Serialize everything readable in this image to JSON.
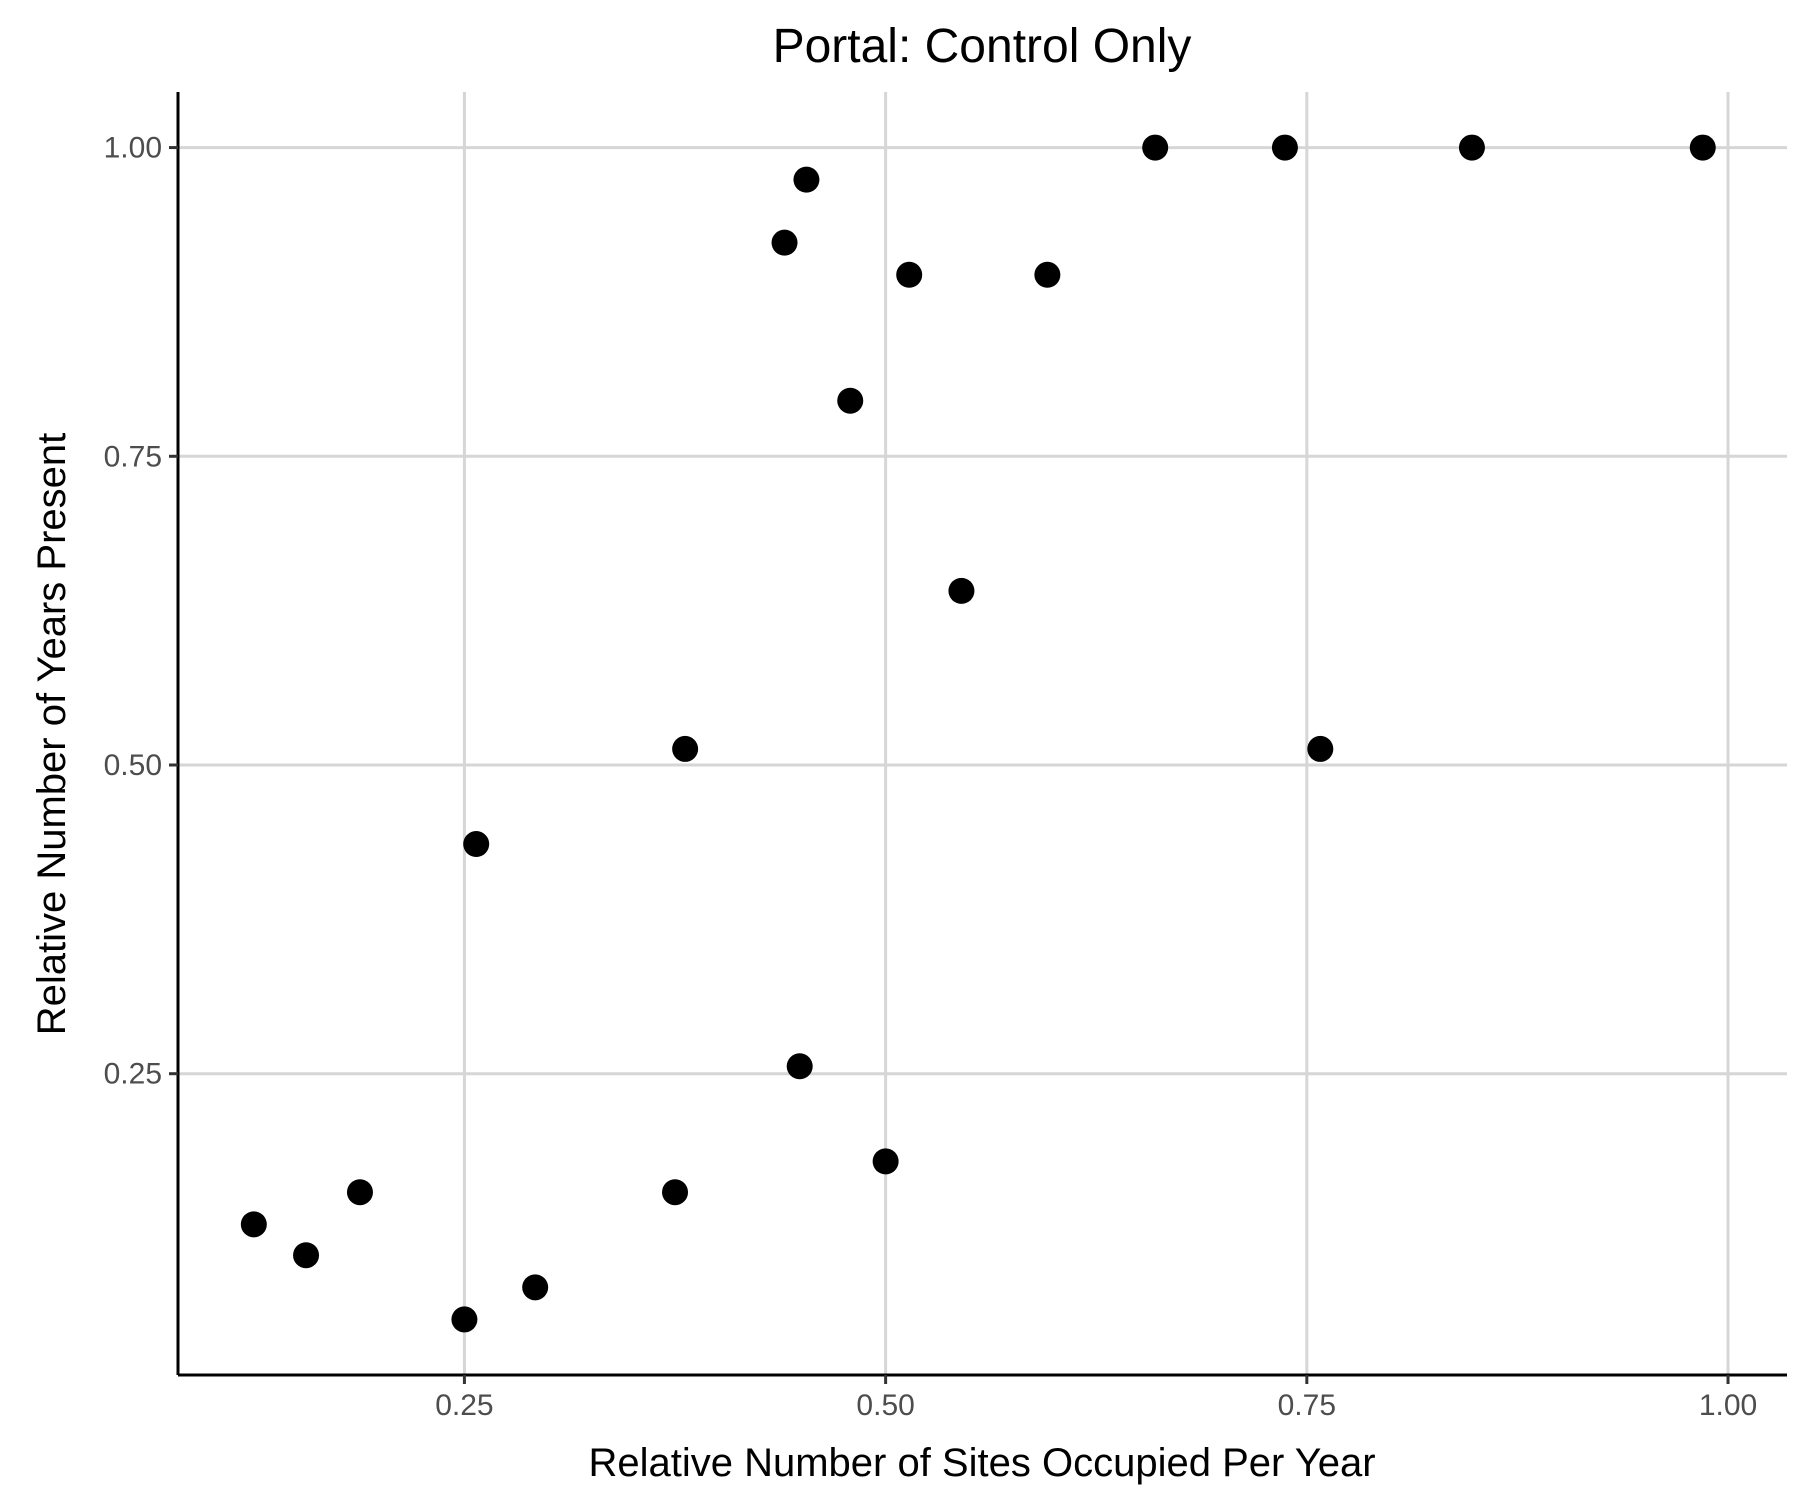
{
  "chart_data": {
    "type": "scatter",
    "title": "Portal: Control Only",
    "xlabel": "Relative Number of Sites Occupied Per Year",
    "ylabel": "Relative Number of Years Present",
    "xlim": [
      0.08,
      1.035
    ],
    "ylim": [
      0.006,
      1.045
    ],
    "x_ticks": [
      0.25,
      0.5,
      0.75,
      1.0
    ],
    "x_tick_labels": [
      "0.25",
      "0.50",
      "0.75",
      "1.00"
    ],
    "y_ticks": [
      0.25,
      0.5,
      0.75,
      1.0
    ],
    "y_tick_labels": [
      "0.25",
      "0.50",
      "0.75",
      "1.00"
    ],
    "grid": true,
    "point_color": "#000000",
    "points": [
      {
        "x": 0.125,
        "y": 0.128
      },
      {
        "x": 0.156,
        "y": 0.103
      },
      {
        "x": 0.188,
        "y": 0.154
      },
      {
        "x": 0.25,
        "y": 0.051
      },
      {
        "x": 0.257,
        "y": 0.436
      },
      {
        "x": 0.292,
        "y": 0.077
      },
      {
        "x": 0.375,
        "y": 0.154
      },
      {
        "x": 0.381,
        "y": 0.513
      },
      {
        "x": 0.44,
        "y": 0.923
      },
      {
        "x": 0.449,
        "y": 0.256
      },
      {
        "x": 0.453,
        "y": 0.974
      },
      {
        "x": 0.479,
        "y": 0.795
      },
      {
        "x": 0.5,
        "y": 0.179
      },
      {
        "x": 0.514,
        "y": 0.897
      },
      {
        "x": 0.545,
        "y": 0.641
      },
      {
        "x": 0.596,
        "y": 0.897
      },
      {
        "x": 0.66,
        "y": 1.0
      },
      {
        "x": 0.737,
        "y": 1.0
      },
      {
        "x": 0.758,
        "y": 0.513
      },
      {
        "x": 0.848,
        "y": 1.0
      },
      {
        "x": 0.985,
        "y": 1.0
      }
    ]
  }
}
